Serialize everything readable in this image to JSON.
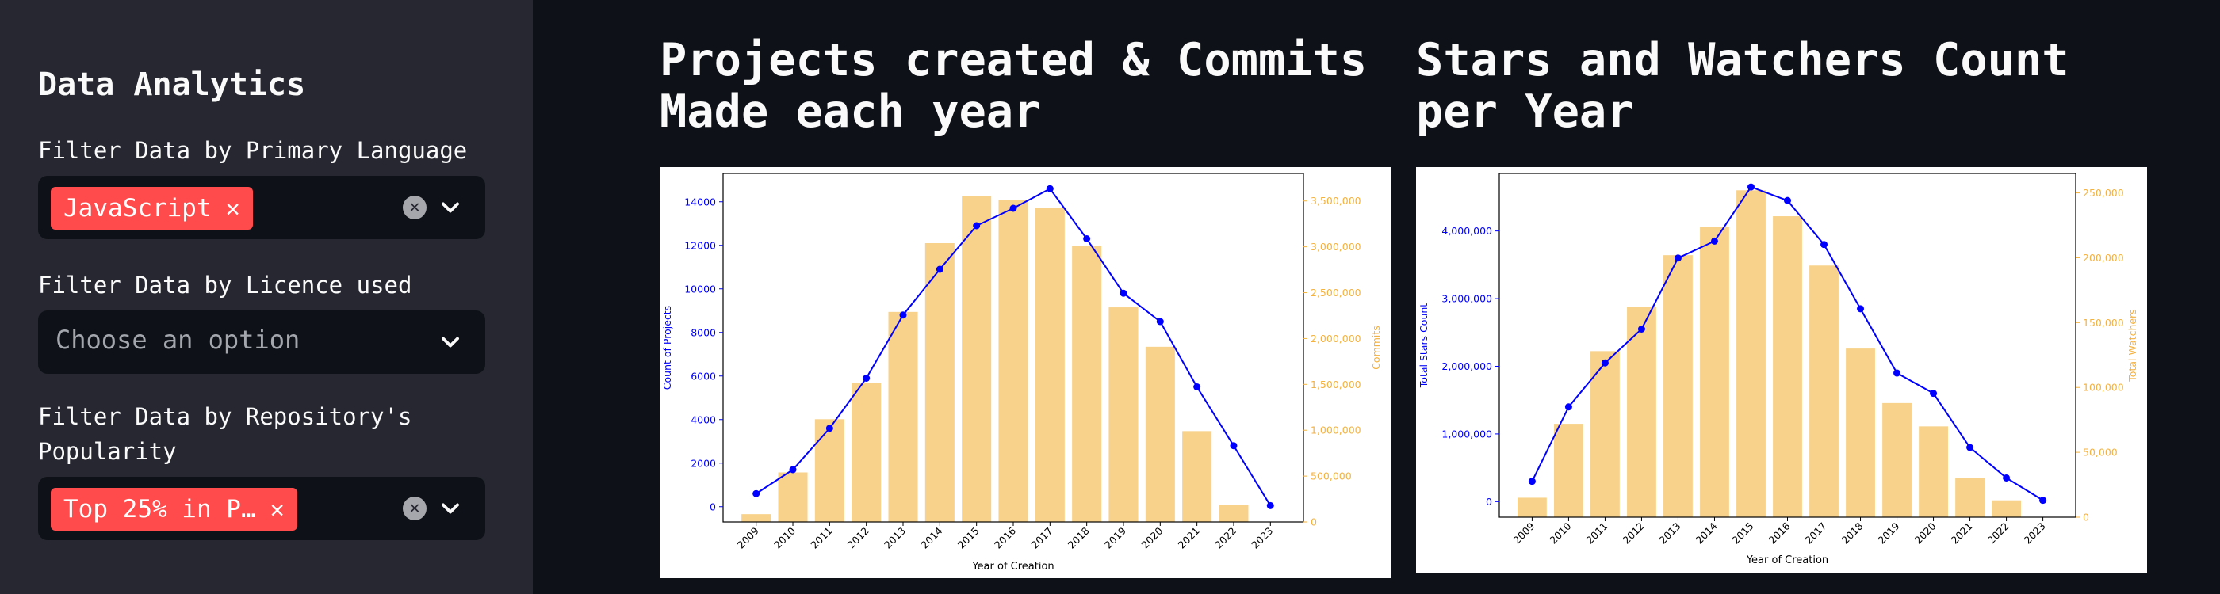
{
  "sidebar": {
    "title": "Data Analytics",
    "filter_language_label": "Filter Data by Primary Language",
    "filter_language_tag": "JavaScript",
    "filter_licence_label": "Filter Data by Licence used",
    "filter_licence_placeholder": "Choose an option",
    "filter_popularity_label": "Filter Data by Repository's Popularity",
    "filter_popularity_tag": "Top 25% in P…",
    "icons": {
      "remove": "close-icon",
      "clear": "clear-icon",
      "dropdown": "chevron-down-icon"
    }
  },
  "main": {
    "chart1_title": "Projects created & Commits Made each year",
    "chart2_title": "Stars and Watchers Count per Year"
  },
  "chart_data": [
    {
      "type": "bar",
      "categories": [
        "2009",
        "2010",
        "2011",
        "2012",
        "2013",
        "2014",
        "2015",
        "2016",
        "2017",
        "2018",
        "2019",
        "2020",
        "2021",
        "2022",
        "2023"
      ],
      "bar_series": {
        "axis": "right",
        "label": "Commits",
        "values": [
          85000,
          540000,
          1120000,
          1520000,
          2290000,
          3040000,
          3550000,
          3510000,
          3420000,
          3010000,
          2340000,
          1910000,
          990000,
          190000,
          0
        ]
      },
      "line_series": {
        "axis": "left",
        "label": "Count of Projects",
        "values": [
          600,
          1700,
          3600,
          5900,
          8800,
          10900,
          12900,
          13700,
          14600,
          12300,
          9800,
          8500,
          5500,
          2800,
          50
        ]
      },
      "xlabel": "Year of Creation",
      "ylabel_left": "Count of Projects",
      "ylabel_right": "Commits",
      "ylim_left": [
        -700,
        15300
      ],
      "ylim_right": [
        0,
        3800000
      ],
      "yticks_left": [
        0,
        2000,
        4000,
        6000,
        8000,
        10000,
        12000,
        14000
      ],
      "yticks_right": [
        0,
        500000,
        1000000,
        1500000,
        2000000,
        2500000,
        3000000,
        3500000
      ],
      "ytick_labels_left": [
        "0",
        "2000",
        "4000",
        "6000",
        "8000",
        "10000",
        "12000",
        "14000"
      ],
      "ytick_labels_right": [
        "0",
        "500,000",
        "1,000,000",
        "1,500,000",
        "2,000,000",
        "2,500,000",
        "3,000,000",
        "3,500,000"
      ],
      "colors": {
        "bar": "#f8d28a",
        "line": "#0000ff",
        "left_axis": "#0000ff",
        "right_axis": "#f4b240"
      }
    },
    {
      "type": "bar",
      "categories": [
        "2009",
        "2010",
        "2011",
        "2012",
        "2013",
        "2014",
        "2015",
        "2016",
        "2017",
        "2018",
        "2019",
        "2020",
        "2021",
        "2022",
        "2023"
      ],
      "bar_series": {
        "axis": "right",
        "label": "Total Watchers",
        "values": [
          15000,
          72000,
          128000,
          162000,
          202000,
          224000,
          252000,
          232000,
          194000,
          130000,
          88000,
          70000,
          30000,
          13000,
          0
        ]
      },
      "line_series": {
        "axis": "left",
        "label": "Total Stars Count",
        "values": [
          300000,
          1400000,
          2050000,
          2550000,
          3600000,
          3850000,
          4650000,
          4450000,
          3800000,
          2850000,
          1900000,
          1600000,
          800000,
          350000,
          20000
        ]
      },
      "xlabel": "Year of Creation",
      "ylabel_left": "Total Stars Count",
      "ylabel_right": "Total Watchers",
      "ylim_left": [
        -230000,
        4850000
      ],
      "ylim_right": [
        0,
        265000
      ],
      "yticks_left": [
        0,
        1000000,
        2000000,
        3000000,
        4000000
      ],
      "yticks_right": [
        0,
        50000,
        100000,
        150000,
        200000,
        250000
      ],
      "ytick_labels_left": [
        "0",
        "1,000,000",
        "2,000,000",
        "3,000,000",
        "4,000,000"
      ],
      "ytick_labels_right": [
        "0",
        "50,000",
        "100,000",
        "150,000",
        "200,000",
        "250,000"
      ],
      "colors": {
        "bar": "#f8d28a",
        "line": "#0000ff",
        "left_axis": "#0000ff",
        "right_axis": "#f4b240"
      }
    }
  ]
}
